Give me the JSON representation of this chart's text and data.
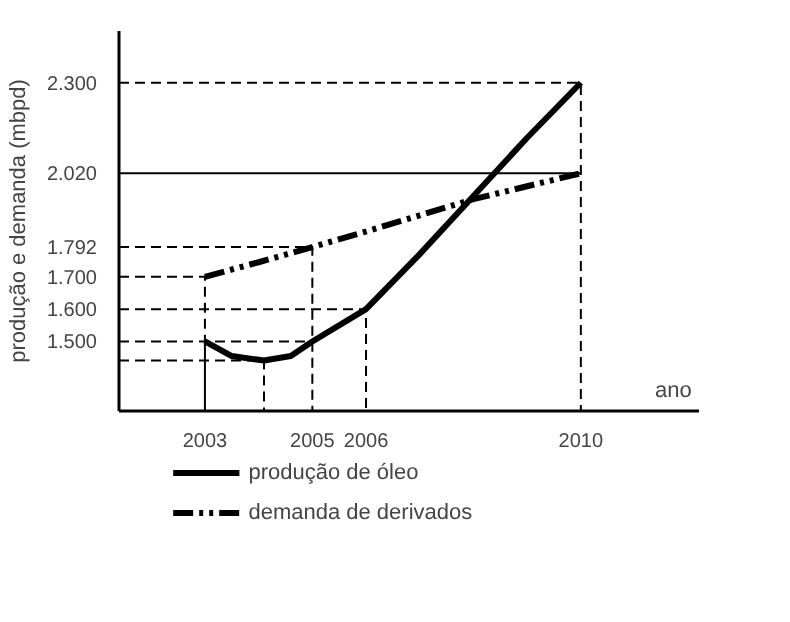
{
  "chart_data": {
    "type": "line",
    "ylabel": "produção e demanda (mbpd)",
    "xlabel": "ano",
    "xlim": [
      2001.4,
      2012.2
    ],
    "ylim": [
      1285,
      2460
    ],
    "xticks": [
      2003,
      2005,
      2006,
      2010
    ],
    "yticks": [
      {
        "value": 1500,
        "label": "1.500"
      },
      {
        "value": 1600,
        "label": "1.600"
      },
      {
        "value": 1700,
        "label": "1.700"
      },
      {
        "value": 1792,
        "label": "1.792"
      },
      {
        "value": 2020,
        "label": "2.020"
      },
      {
        "value": 2300,
        "label": "2.300"
      }
    ],
    "legend": "bottom",
    "series": [
      {
        "name": "produção de óleo",
        "color": "#000000",
        "line_style": "solid",
        "x": [
          2003,
          2003.5,
          2004.1,
          2004.6,
          2005,
          2006,
          2007,
          2008,
          2009,
          2010
        ],
        "values": [
          1500,
          1455,
          1441,
          1455,
          1500,
          1600,
          1770,
          1950,
          2130,
          2300
        ]
      },
      {
        "name": "demanda de derivados",
        "color": "#000000",
        "line_style": "dashdot",
        "x": [
          2003,
          2004,
          2005,
          2006,
          2007,
          2008,
          2009,
          2010
        ],
        "values": [
          1700,
          1745,
          1792,
          1840,
          1890,
          1940,
          1980,
          2020
        ]
      },
      {
        "color": "#000000",
        "line_style": "dashed",
        "x": [
          2001.4,
          2010,
          2010
        ],
        "values": [
          2300,
          2300,
          1285
        ]
      },
      {
        "color": "#000000",
        "line_style": "solid",
        "x": [
          2001.4,
          2010
        ],
        "values": [
          2020,
          2020
        ]
      },
      {
        "color": "#000000",
        "line_style": "dashed",
        "x": [
          2001.4,
          2005,
          2005
        ],
        "values": [
          1792,
          1792,
          1285
        ]
      },
      {
        "color": "#000000",
        "line_style": "dashed",
        "x": [
          2001.4,
          2003,
          2003
        ],
        "values": [
          1700,
          1700,
          1500
        ]
      },
      {
        "color": "#000000",
        "line_style": "solid",
        "x": [
          2003,
          2003
        ],
        "values": [
          1500,
          1285
        ]
      },
      {
        "color": "#000000",
        "line_style": "dashed",
        "x": [
          2001.4,
          2006,
          2006
        ],
        "values": [
          1600,
          1600,
          1285
        ]
      },
      {
        "color": "#000000",
        "line_style": "dashed",
        "x": [
          2001.4,
          2005
        ],
        "values": [
          1500,
          1500
        ]
      },
      {
        "color": "#000000",
        "line_style": "dashed",
        "x": [
          2001.4,
          2004.1,
          2004.1
        ],
        "values": [
          1441,
          1441,
          1285
        ]
      }
    ]
  }
}
